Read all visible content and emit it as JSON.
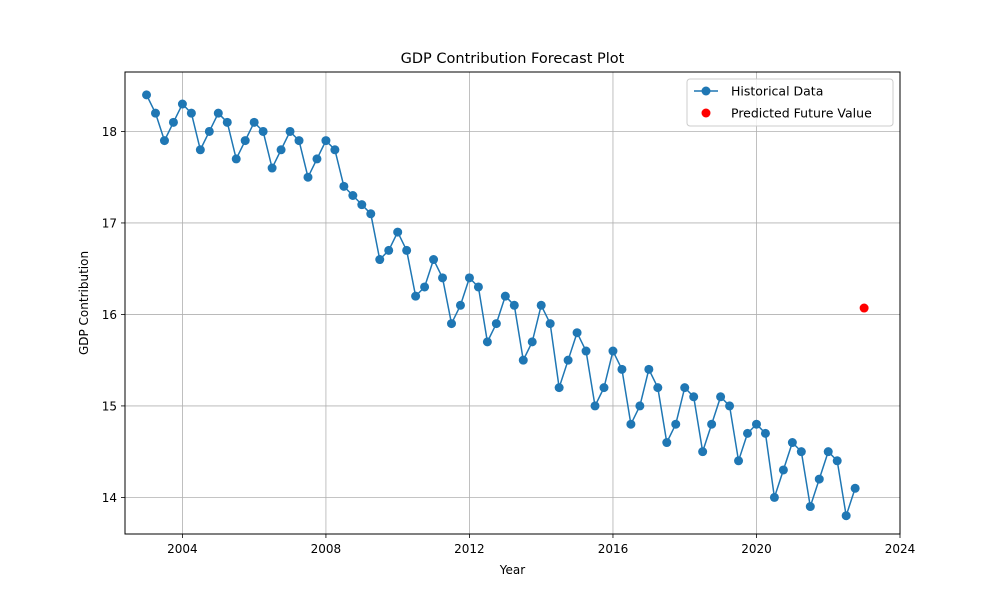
{
  "chart_data": {
    "type": "line",
    "title": "GDP Contribution Forecast Plot",
    "xlabel": "Year",
    "ylabel": "GDP Contribution",
    "xlim": [
      2002.4,
      2024.0
    ],
    "ylim": [
      13.6,
      18.65
    ],
    "x_ticks": [
      2004,
      2008,
      2012,
      2016,
      2020,
      2024
    ],
    "y_ticks": [
      14,
      15,
      16,
      17,
      18
    ],
    "grid": true,
    "legend_position": "top-right",
    "series": [
      {
        "name": "Historical Data",
        "color": "#1f77b4",
        "marker": "circle",
        "x": [
          2003.0,
          2003.25,
          2003.5,
          2003.75,
          2004.0,
          2004.25,
          2004.5,
          2004.75,
          2005.0,
          2005.25,
          2005.5,
          2005.75,
          2006.0,
          2006.25,
          2006.5,
          2006.75,
          2007.0,
          2007.25,
          2007.5,
          2007.75,
          2008.0,
          2008.25,
          2008.5,
          2008.75,
          2009.0,
          2009.25,
          2009.5,
          2009.75,
          2010.0,
          2010.25,
          2010.5,
          2010.75,
          2011.0,
          2011.25,
          2011.5,
          2011.75,
          2012.0,
          2012.25,
          2012.5,
          2012.75,
          2013.0,
          2013.25,
          2013.5,
          2013.75,
          2014.0,
          2014.25,
          2014.5,
          2014.75,
          2015.0,
          2015.25,
          2015.5,
          2015.75,
          2016.0,
          2016.25,
          2016.5,
          2016.75,
          2017.0,
          2017.25,
          2017.5,
          2017.75,
          2018.0,
          2018.25,
          2018.5,
          2018.75,
          2019.0,
          2019.25,
          2019.5,
          2019.75,
          2020.0,
          2020.25,
          2020.5,
          2020.75,
          2021.0,
          2021.25,
          2021.5,
          2021.75,
          2022.0,
          2022.25,
          2022.5,
          2022.75
        ],
        "y": [
          18.4,
          18.2,
          17.9,
          18.1,
          18.3,
          18.2,
          17.8,
          18.0,
          18.2,
          18.1,
          17.7,
          17.9,
          18.1,
          18.0,
          17.6,
          17.8,
          18.0,
          17.9,
          17.5,
          17.7,
          17.9,
          17.8,
          17.4,
          17.3,
          17.2,
          17.1,
          16.6,
          16.7,
          16.9,
          16.7,
          16.2,
          16.3,
          16.6,
          16.4,
          15.9,
          16.1,
          16.4,
          16.3,
          15.7,
          15.9,
          16.2,
          16.1,
          15.5,
          15.7,
          16.1,
          15.9,
          15.2,
          15.5,
          15.8,
          15.6,
          15.0,
          15.2,
          15.6,
          15.4,
          14.8,
          15.0,
          15.4,
          15.2,
          14.6,
          14.8,
          15.2,
          15.1,
          14.5,
          14.8,
          15.1,
          15.0,
          14.4,
          14.7,
          14.8,
          14.7,
          14.0,
          14.3,
          14.6,
          14.5,
          13.9,
          14.2,
          14.5,
          14.4,
          13.8,
          14.1
        ]
      },
      {
        "name": "Predicted Future Value",
        "color": "#ff0000",
        "marker": "circle",
        "type": "scatter",
        "x": [
          2023.0
        ],
        "y": [
          16.07
        ]
      }
    ]
  }
}
